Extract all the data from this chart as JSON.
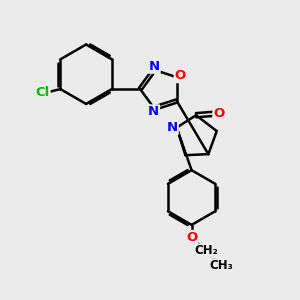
{
  "background_color": "#ebebeb",
  "bond_color": "#000000",
  "bond_width": 1.8,
  "atom_colors": {
    "N": "#0000ff",
    "O": "#ff0000",
    "Cl": "#00bb00",
    "C": "#000000"
  },
  "font_size": 9.5,
  "figsize": [
    3.0,
    3.0
  ],
  "dpi": 100
}
